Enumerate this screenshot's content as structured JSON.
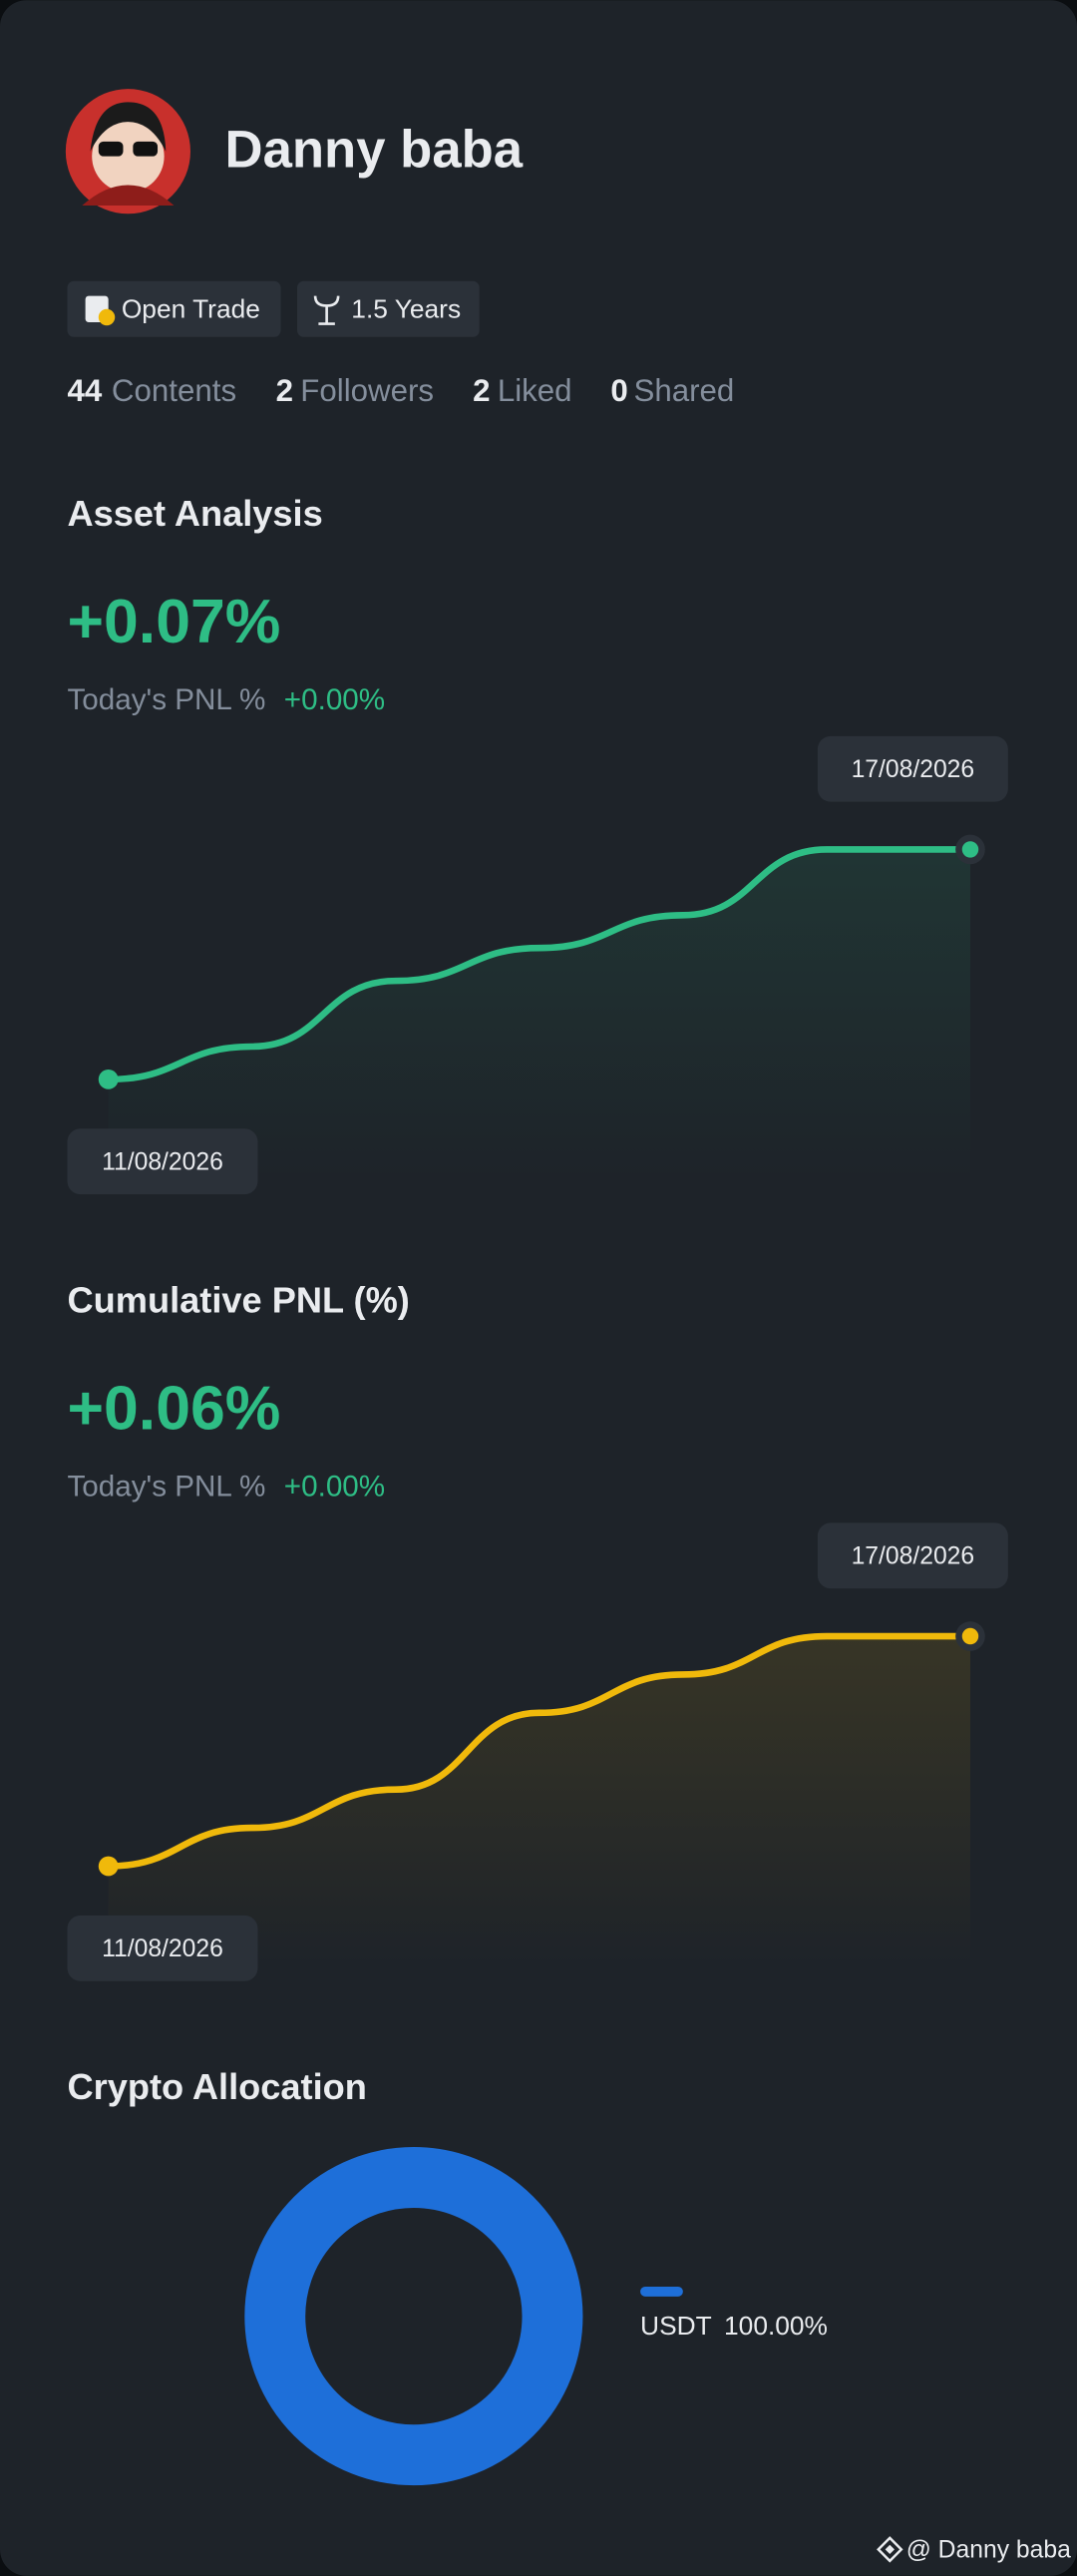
{
  "profile": {
    "name": "Danny baba",
    "badges": [
      "Open Trade",
      "1.5 Years"
    ],
    "stats": [
      {
        "count": 44,
        "label": "Contents"
      },
      {
        "count": 2,
        "label": "Followers"
      },
      {
        "count": 2,
        "label": "Liked"
      },
      {
        "count": 0,
        "label": "Shared"
      }
    ]
  },
  "charts": [
    {
      "type": "line",
      "title": "Asset Analysis",
      "headline": "+0.07%",
      "today_label": "Today's PNL %",
      "today_value": "+0.00%",
      "x": [
        "11/08/2026",
        null,
        null,
        null,
        null,
        null,
        "17/08/2026"
      ],
      "values": [
        0,
        0.01,
        0.03,
        0.04,
        0.05,
        0.07,
        0.07
      ],
      "ylim": [
        0,
        0.07
      ],
      "color": "#2ebd85"
    },
    {
      "type": "line",
      "title": "Cumulative PNL (%)",
      "headline": "+0.06%",
      "today_label": "Today's PNL %",
      "today_value": "+0.00%",
      "x": [
        "11/08/2026",
        null,
        null,
        null,
        null,
        null,
        "17/08/2026"
      ],
      "values": [
        0,
        0.01,
        0.02,
        0.04,
        0.05,
        0.06,
        0.06
      ],
      "ylim": [
        0,
        0.06
      ],
      "color": "#f0b90b"
    },
    {
      "type": "pie",
      "title": "Crypto Allocation",
      "categories": [
        "USDT"
      ],
      "values": [
        100
      ],
      "value_labels": [
        "100.00%"
      ],
      "colors": [
        "#1e6fd9"
      ]
    }
  ],
  "watermark": "@ Danny baba"
}
